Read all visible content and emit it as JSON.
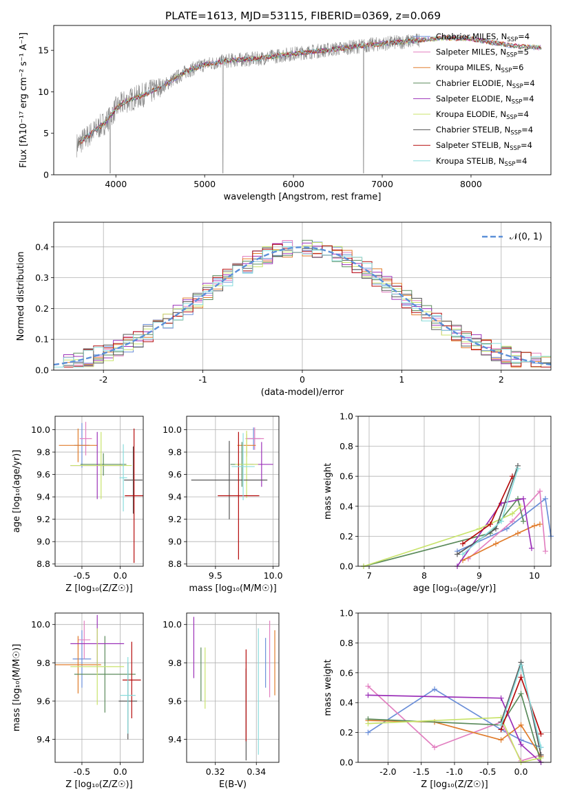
{
  "title": "PLATE=1613, MJD=53115, FIBERID=0369, z=0.069",
  "colors": {
    "model_colors": [
      "#6a8ed8",
      "#e27fc0",
      "#e07b2a",
      "#5a8a5a",
      "#9b30b8",
      "#c8e36a",
      "#555555",
      "#b50a0a",
      "#88dddd"
    ],
    "data_color": "#888888",
    "gauss_color": "#5b8fd8"
  },
  "legend_entries": [
    "Chabrier MILES, N_SSP=4",
    "Salpeter MILES, N_SSP=5",
    "Kroupa MILES, N_SSP=6",
    "Chabrier ELODIE, N_SSP=4",
    "Salpeter ELODIE, N_SSP=4",
    "Kroupa ELODIE, N_SSP=4",
    "Chabrier STELIB, N_SSP=4",
    "Salpeter STELIB, N_SSP=4",
    "Kroupa STELIB, N_SSP=4"
  ],
  "chart_data": [
    {
      "id": "spectrum",
      "type": "line",
      "xlabel": "wavelength [Angstrom, rest frame]",
      "ylabel": "Flux [f_λ 10^-17 erg cm^-2 s^-1 A^-1]",
      "xlim": [
        3300,
        8900
      ],
      "ylim": [
        0,
        18
      ],
      "xticks": [
        4000,
        5000,
        6000,
        7000,
        8000
      ],
      "yticks": [
        0,
        5,
        10,
        15
      ],
      "grid": false,
      "legend": "right",
      "continuum_x": [
        3550,
        3700,
        3900,
        4000,
        4100,
        4300,
        4500,
        4800,
        5000,
        5300,
        5600,
        6000,
        6500,
        7000,
        7400,
        7700,
        8000,
        8200,
        8500,
        8800
      ],
      "continuum_y": [
        3.5,
        4.8,
        6.5,
        8.0,
        8.8,
        9.6,
        10.5,
        12.5,
        13.3,
        13.8,
        14.0,
        14.6,
        15.2,
        15.8,
        16.2,
        16.5,
        16.4,
        16.0,
        15.5,
        15.3
      ]
    },
    {
      "id": "residuals",
      "type": "bar",
      "xlabel": "(data-model)/error",
      "ylabel": "Normed distribution",
      "xlim": [
        -2.5,
        2.5
      ],
      "ylim": [
        0,
        0.48
      ],
      "xticks": [
        -2,
        -1,
        0,
        1,
        2
      ],
      "yticks": [
        0.0,
        0.1,
        0.2,
        0.3,
        0.4
      ],
      "grid": true,
      "legend": "upper right",
      "series_name": "N(0,1)"
    },
    {
      "id": "age_vs_Z",
      "type": "scatter",
      "xlabel": "Z [log10(Z/Z_sun)]",
      "ylabel": "age [log10(age/yr)]",
      "xlim": [
        -0.85,
        0.3
      ],
      "ylim": [
        8.78,
        10.12
      ],
      "xticks": [
        -0.5,
        0.0
      ],
      "yticks": [
        8.8,
        9.0,
        9.2,
        9.4,
        9.6,
        9.8,
        10.0
      ],
      "grid": true,
      "points": [
        {
          "x": -0.5,
          "y": 9.86,
          "xerr": 0.1,
          "yerr": 0.2
        },
        {
          "x": -0.45,
          "y": 9.92,
          "xerr": 0.08,
          "yerr": 0.15
        },
        {
          "x": -0.55,
          "y": 9.86,
          "xerr": 0.25,
          "yerr": 0.15
        },
        {
          "x": -0.22,
          "y": 9.69,
          "xerr": 0.3,
          "yerr": 0.1
        },
        {
          "x": -0.3,
          "y": 9.68,
          "xerr": 0.35,
          "yerr": 0.3
        },
        {
          "x": -0.25,
          "y": 9.68,
          "xerr": 0.4,
          "yerr": 0.3
        },
        {
          "x": 0.17,
          "y": 9.55,
          "xerr": 0.12,
          "yerr": 0.3
        },
        {
          "x": 0.18,
          "y": 9.41,
          "xerr": 0.12,
          "yerr": 0.6
        },
        {
          "x": 0.04,
          "y": 9.57,
          "xerr": 0.05,
          "yerr": 0.3
        }
      ]
    },
    {
      "id": "age_vs_mass",
      "type": "scatter",
      "xlabel": "mass [log10(M/M_sun)]",
      "ylabel": "",
      "xlim": [
        9.25,
        10.05
      ],
      "ylim": [
        8.78,
        10.12
      ],
      "xticks": [
        9.5,
        10.0
      ],
      "yticks": [
        8.8,
        9.0,
        9.2,
        9.4,
        9.6,
        9.8,
        10.0
      ],
      "grid": true,
      "points": [
        {
          "x": 9.83,
          "y": 9.92,
          "xerr": 0.06,
          "yerr": 0.1
        },
        {
          "x": 9.84,
          "y": 9.92,
          "xerr": 0.08,
          "yerr": 0.1
        },
        {
          "x": 9.77,
          "y": 9.86,
          "xerr": 0.08,
          "yerr": 0.1
        },
        {
          "x": 9.73,
          "y": 9.69,
          "xerr": 0.1,
          "yerr": 0.2
        },
        {
          "x": 9.9,
          "y": 9.69,
          "xerr": 0.1,
          "yerr": 0.2
        },
        {
          "x": 9.77,
          "y": 9.69,
          "xerr": 0.1,
          "yerr": 0.3
        },
        {
          "x": 9.62,
          "y": 9.55,
          "xerr": 0.33,
          "yerr": 0.35
        },
        {
          "x": 9.7,
          "y": 9.41,
          "xerr": 0.18,
          "yerr": 0.57
        },
        {
          "x": 9.74,
          "y": 9.67,
          "xerr": 0.1,
          "yerr": 0.3
        }
      ]
    },
    {
      "id": "massweight_vs_age",
      "type": "line",
      "xlabel": "age [log10(age/yr)]",
      "ylabel": "mass weight",
      "xlim": [
        6.8,
        10.3
      ],
      "ylim": [
        0,
        1
      ],
      "xticks": [
        7,
        8,
        9,
        10
      ],
      "yticks": [
        0.0,
        0.2,
        0.4,
        0.6,
        0.8,
        1.0
      ],
      "grid": true,
      "series": [
        {
          "x": [
            8.6,
            9.5,
            10.2,
            10.3
          ],
          "y": [
            0.1,
            0.25,
            0.45,
            0.2
          ]
        },
        {
          "x": [
            8.8,
            9.6,
            10.1,
            10.2
          ],
          "y": [
            0.05,
            0.3,
            0.5,
            0.1
          ]
        },
        {
          "x": [
            8.7,
            9.3,
            9.7,
            10.0,
            10.1
          ],
          "y": [
            0.04,
            0.15,
            0.22,
            0.27,
            0.28
          ]
        },
        {
          "x": [
            6.9,
            9.2,
            9.7,
            9.8
          ],
          "y": [
            0.0,
            0.22,
            0.45,
            0.3
          ]
        },
        {
          "x": [
            8.6,
            9.4,
            9.8,
            9.95
          ],
          "y": [
            0.0,
            0.42,
            0.45,
            0.12
          ]
        },
        {
          "x": [
            6.9,
            9.0,
            9.6,
            9.75
          ],
          "y": [
            0.0,
            0.25,
            0.35,
            0.4
          ]
        },
        {
          "x": [
            8.6,
            9.3,
            9.7
          ],
          "y": [
            0.08,
            0.25,
            0.67
          ]
        },
        {
          "x": [
            8.7,
            9.2,
            9.6
          ],
          "y": [
            0.15,
            0.28,
            0.6
          ]
        },
        {
          "x": [
            8.7,
            9.4,
            9.7
          ],
          "y": [
            0.08,
            0.3,
            0.65
          ]
        }
      ]
    },
    {
      "id": "mass_vs_Z",
      "type": "scatter",
      "xlabel": "Z [log10(Z/Z_sun)]",
      "ylabel": "mass [log10(M/M_sun)]",
      "xlim": [
        -0.85,
        0.3
      ],
      "ylim": [
        9.28,
        10.06
      ],
      "xticks": [
        -0.5,
        0.0
      ],
      "yticks": [
        9.4,
        9.6,
        9.8,
        10.0
      ],
      "grid": true,
      "points": [
        {
          "x": -0.5,
          "y": 9.82,
          "xerr": 0.12,
          "yerr": 0.15
        },
        {
          "x": -0.47,
          "y": 9.92,
          "xerr": 0.08,
          "yerr": 0.1
        },
        {
          "x": -0.55,
          "y": 9.79,
          "xerr": 0.3,
          "yerr": 0.15
        },
        {
          "x": -0.2,
          "y": 9.74,
          "xerr": 0.4,
          "yerr": 0.2
        },
        {
          "x": -0.3,
          "y": 9.9,
          "xerr": 0.35,
          "yerr": 0.15
        },
        {
          "x": -0.3,
          "y": 9.78,
          "xerr": 0.35,
          "yerr": 0.2
        },
        {
          "x": 0.1,
          "y": 9.6,
          "xerr": 0.12,
          "yerr": 0.2
        },
        {
          "x": 0.15,
          "y": 9.71,
          "xerr": 0.12,
          "yerr": 0.2
        },
        {
          "x": 0.1,
          "y": 9.63,
          "xerr": 0.1,
          "yerr": 0.2
        }
      ]
    },
    {
      "id": "mass_vs_EBV",
      "type": "scatter",
      "xlabel": "E(B-V)",
      "ylabel": "",
      "xlim": [
        0.306,
        0.351
      ],
      "ylim": [
        9.28,
        10.06
      ],
      "xticks": [
        0.32,
        0.34
      ],
      "yticks": [
        9.4,
        9.6,
        9.8,
        10.0
      ],
      "grid": true,
      "points": [
        {
          "x": 0.3445,
          "y": 9.8,
          "xerr": 0,
          "yerr": 0.13
        },
        {
          "x": 0.3465,
          "y": 9.82,
          "xerr": 0,
          "yerr": 0.2
        },
        {
          "x": 0.349,
          "y": 9.8,
          "xerr": 0,
          "yerr": 0.17
        },
        {
          "x": 0.313,
          "y": 9.74,
          "xerr": 0,
          "yerr": 0.14
        },
        {
          "x": 0.3095,
          "y": 9.88,
          "xerr": 0,
          "yerr": 0.16
        },
        {
          "x": 0.315,
          "y": 9.72,
          "xerr": 0,
          "yerr": 0.16
        },
        {
          "x": 0.335,
          "y": 9.53,
          "xerr": 0,
          "yerr": 0.24
        },
        {
          "x": 0.335,
          "y": 9.63,
          "xerr": 0,
          "yerr": 0.24
        },
        {
          "x": 0.341,
          "y": 9.65,
          "xerr": 0,
          "yerr": 0.33
        }
      ]
    },
    {
      "id": "massweight_vs_Z",
      "type": "line",
      "xlabel": "Z [log10(Z/Z_sun)]",
      "ylabel": "mass weight",
      "xlim": [
        -2.45,
        0.45
      ],
      "ylim": [
        0,
        1
      ],
      "xticks": [
        -2.0,
        -1.5,
        -1.0,
        -0.5,
        0.0
      ],
      "yticks": [
        0.0,
        0.2,
        0.4,
        0.6,
        0.8,
        1.0
      ],
      "grid": true,
      "series": [
        {
          "x": [
            -2.3,
            -1.3,
            -0.3,
            0.0,
            0.3
          ],
          "y": [
            0.2,
            0.49,
            0.22,
            0.15,
            0.1
          ]
        },
        {
          "x": [
            -2.3,
            -1.3,
            -0.3,
            0.0,
            0.3
          ],
          "y": [
            0.51,
            0.1,
            0.27,
            0.01,
            0.05
          ]
        },
        {
          "x": [
            -2.3,
            -1.3,
            -0.3,
            0.0,
            0.3
          ],
          "y": [
            0.28,
            0.27,
            0.15,
            0.25,
            0.04
          ]
        },
        {
          "x": [
            -2.3,
            -0.3,
            0.0,
            0.3
          ],
          "y": [
            0.29,
            0.25,
            0.46,
            0.0
          ]
        },
        {
          "x": [
            -2.3,
            -0.3,
            0.0,
            0.3
          ],
          "y": [
            0.45,
            0.43,
            0.12,
            0.0
          ]
        },
        {
          "x": [
            -2.3,
            -0.3,
            0.0,
            0.3
          ],
          "y": [
            0.26,
            0.3,
            0.0,
            0.03
          ]
        },
        {
          "x": [
            -0.3,
            0.0,
            0.3
          ],
          "y": [
            0.27,
            0.67,
            0.05
          ]
        },
        {
          "x": [
            -0.3,
            0.0,
            0.3
          ],
          "y": [
            0.22,
            0.57,
            0.19
          ]
        },
        {
          "x": [
            -0.3,
            0.0,
            0.3
          ],
          "y": [
            0.25,
            0.65,
            0.1
          ]
        }
      ]
    }
  ]
}
